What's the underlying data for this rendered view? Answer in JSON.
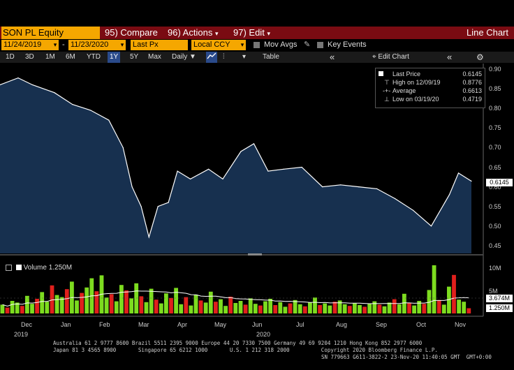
{
  "header": {
    "ticker": "SON PL Equity",
    "compare": "95) Compare",
    "actions": "96) Actions",
    "actions_arrow": "▾",
    "edit": "97) Edit",
    "edit_arrow": "▾",
    "title": "Line Chart"
  },
  "controls": {
    "start_date": "11/24/2019",
    "dash": "-",
    "end_date": "11/23/2020",
    "field": "Last Px",
    "currency": "Local CCY",
    "mov_avgs": "Mov Avgs",
    "key_events": "Key Events"
  },
  "ranges": {
    "items": [
      "1D",
      "3D",
      "1M",
      "6M",
      "YTD",
      "1Y",
      "5Y",
      "Max"
    ],
    "active": "1Y",
    "frequency": "Daily",
    "table": "Table",
    "edit_chart": "Edit Chart"
  },
  "legend": {
    "last_price_label": "Last Price",
    "last_price_value": "0.6145",
    "high_label": "High on 12/09/19",
    "high_value": "0.8776",
    "average_label": "Average",
    "average_value": "0.6613",
    "low_label": "Low on 03/19/20",
    "low_value": "0.4719",
    "volume_label": "Volume",
    "volume_value": "1.250M"
  },
  "price_axis": {
    "ticks": [
      "0.90",
      "0.85",
      "0.80",
      "0.75",
      "0.70",
      "0.65",
      "0.60",
      "0.55",
      "0.50",
      "0.45"
    ],
    "last_tag": "0.6145"
  },
  "volume_axis": {
    "ticks": [
      "10M",
      "5M"
    ],
    "tag_avg": "3.674M",
    "tag_last": "1.250M"
  },
  "time_axis": {
    "months": [
      "Dec",
      "Jan",
      "Feb",
      "Mar",
      "Apr",
      "May",
      "Jun",
      "Jul",
      "Aug",
      "Sep",
      "Oct",
      "Nov"
    ],
    "year_left": "2019",
    "year_mid": "2020"
  },
  "footer": {
    "line1": "Australia 61 2 9777 8600 Brazil 5511 2395 9000 Europe 44 20 7330 7500 Germany 49 69 9204 1210 Hong Kong 852 2977 6000",
    "line2": "Japan 81 3 4565 8900       Singapore 65 6212 1000       U.S. 1 212 318 2000          Copyright 2020 Bloomberg Finance L.P.",
    "line3": "SN 779663 G611-3822-2 23-Nov-20 11:40:05 GMT  GMT+0:00"
  },
  "colors": {
    "ticker_bg": "#f5a700",
    "menu_bg": "#7a0b12",
    "area_fill": "#17304f",
    "line": "#ffffff",
    "vol_up": "#7ddc1f",
    "vol_down": "#e0201c"
  },
  "chart_data": {
    "type": "line",
    "x": [
      "2019-11-25",
      "2019-12-09",
      "2019-12-20",
      "2020-01-06",
      "2020-01-20",
      "2020-02-03",
      "2020-02-17",
      "2020-02-28",
      "2020-03-06",
      "2020-03-13",
      "2020-03-19",
      "2020-03-26",
      "2020-04-03",
      "2020-04-10",
      "2020-04-20",
      "2020-05-04",
      "2020-05-15",
      "2020-05-29",
      "2020-06-08",
      "2020-06-19",
      "2020-07-01",
      "2020-07-15",
      "2020-07-31",
      "2020-08-14",
      "2020-08-28",
      "2020-09-11",
      "2020-09-25",
      "2020-10-09",
      "2020-10-23",
      "2020-11-06",
      "2020-11-13",
      "2020-11-23"
    ],
    "y": [
      0.86,
      0.8776,
      0.86,
      0.84,
      0.81,
      0.795,
      0.77,
      0.7,
      0.6,
      0.55,
      0.4719,
      0.55,
      0.56,
      0.64,
      0.62,
      0.645,
      0.62,
      0.69,
      0.71,
      0.64,
      0.645,
      0.65,
      0.6,
      0.605,
      0.6,
      0.595,
      0.57,
      0.54,
      0.5,
      0.58,
      0.635,
      0.6145
    ],
    "ylim": [
      0.43,
      0.91
    ],
    "title": "",
    "xlabel": "",
    "ylabel": "",
    "volume_millions": [
      2.1,
      1.4,
      3.0,
      2.6,
      1.8,
      4.2,
      2.3,
      3.5,
      5.1,
      2.8,
      6.7,
      4.4,
      3.9,
      5.8,
      7.6,
      3.1,
      4.9,
      6.2,
      8.4,
      5.3,
      9.1,
      3.8,
      4.6,
      2.9,
      6.8,
      5.5,
      3.6,
      7.2,
      4.1,
      2.7,
      5.9,
      3.3,
      2.4,
      4.8,
      3.7,
      6.1,
      2.2,
      3.9,
      1.9,
      4.5,
      3.1,
      2.6,
      5.2,
      2.8,
      3.4,
      1.8,
      4.0,
      2.5,
      3.0,
      2.1,
      3.6,
      2.3,
      1.9,
      2.9,
      3.5,
      2.0,
      2.7,
      1.6,
      2.4,
      3.2,
      2.2,
      1.7,
      2.6,
      3.8,
      2.0,
      2.4,
      1.9,
      2.8,
      3.1,
      2.2,
      1.8,
      2.5,
      2.0,
      1.6,
      2.3,
      2.9,
      2.1,
      1.7,
      2.6,
      3.4,
      2.2,
      4.7,
      2.5,
      1.9,
      3.0,
      2.3,
      5.6,
      11.5,
      3.2,
      2.1,
      6.4,
      9.2,
      3.3,
      2.8,
      1.25
    ],
    "volume_avg_millions": 3.674
  }
}
